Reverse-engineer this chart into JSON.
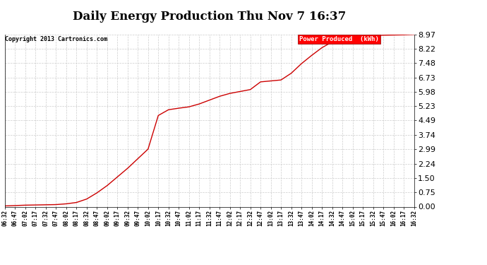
{
  "title": "Daily Energy Production Thu Nov 7 16:37",
  "copyright": "Copyright 2013 Cartronics.com",
  "legend_label": "Power Produced  (kWh)",
  "line_color": "#cc0000",
  "background_color": "#ffffff",
  "plot_bg_color": "#ffffff",
  "grid_color": "#cccccc",
  "yticks": [
    0.0,
    0.75,
    1.5,
    2.24,
    2.99,
    3.74,
    4.49,
    5.23,
    5.98,
    6.73,
    7.48,
    8.22,
    8.97
  ],
  "ylim": [
    0.0,
    8.97
  ],
  "x_labels": [
    "06:32",
    "06:47",
    "07:02",
    "07:17",
    "07:32",
    "07:47",
    "08:02",
    "08:17",
    "08:32",
    "08:47",
    "09:02",
    "09:17",
    "09:32",
    "09:47",
    "10:02",
    "10:17",
    "10:32",
    "10:47",
    "11:02",
    "11:17",
    "11:32",
    "11:47",
    "12:02",
    "12:17",
    "12:32",
    "12:47",
    "13:02",
    "13:17",
    "13:32",
    "13:47",
    "14:02",
    "14:17",
    "14:32",
    "14:47",
    "15:02",
    "15:17",
    "15:32",
    "15:47",
    "16:02",
    "16:17",
    "16:32"
  ],
  "y_data": [
    0.04,
    0.06,
    0.08,
    0.09,
    0.1,
    0.11,
    0.15,
    0.22,
    0.4,
    0.72,
    1.1,
    1.55,
    2.0,
    2.5,
    3.0,
    4.75,
    5.05,
    5.13,
    5.2,
    5.35,
    5.55,
    5.75,
    5.9,
    6.0,
    6.1,
    6.5,
    6.55,
    6.6,
    6.95,
    7.45,
    7.88,
    8.28,
    8.58,
    8.78,
    8.86,
    8.89,
    8.91,
    8.93,
    8.94,
    8.95,
    8.97
  ]
}
